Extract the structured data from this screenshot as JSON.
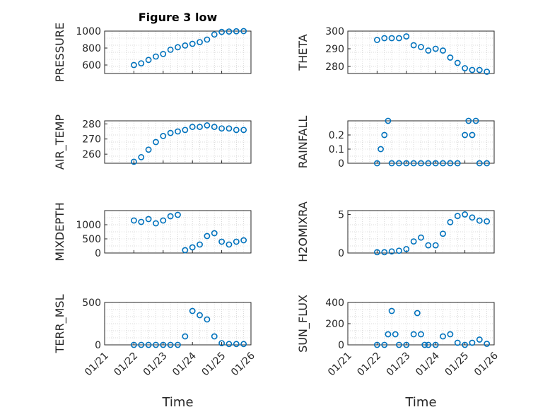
{
  "figure": {
    "title": "Figure 3 low",
    "marker_color": "#0072BD"
  },
  "x_axis": {
    "label": "Time",
    "tick_labels": [
      "01/21",
      "01/22",
      "01/23",
      "01/24",
      "01/25",
      "01/26"
    ],
    "range": [
      "01/21",
      "01/26"
    ]
  },
  "chart_data": [
    {
      "type": "scatter",
      "ylabel": "PRESSURE",
      "yticks": [
        "600",
        "800",
        "1000"
      ],
      "ylim": [
        500,
        1000
      ],
      "title": "Figure 3 low",
      "x": [
        "01/22 00:00",
        "01/22 06:00",
        "01/22 12:00",
        "01/22 18:00",
        "01/23 00:00",
        "01/23 06:00",
        "01/23 12:00",
        "01/23 18:00",
        "01/24 00:00",
        "01/24 06:00",
        "01/24 12:00",
        "01/24 18:00",
        "01/25 00:00",
        "01/25 06:00",
        "01/25 12:00",
        "01/25 18:00"
      ],
      "y": [
        600,
        620,
        660,
        700,
        730,
        780,
        810,
        830,
        850,
        870,
        900,
        960,
        990,
        995,
        998,
        1000
      ]
    },
    {
      "type": "scatter",
      "ylabel": "THETA",
      "yticks": [
        "280",
        "290",
        "300"
      ],
      "ylim": [
        276,
        300
      ],
      "x": [
        "01/22 00:00",
        "01/22 06:00",
        "01/22 12:00",
        "01/22 18:00",
        "01/23 00:00",
        "01/23 06:00",
        "01/23 12:00",
        "01/23 18:00",
        "01/24 00:00",
        "01/24 06:00",
        "01/24 12:00",
        "01/24 18:00",
        "01/25 00:00",
        "01/25 06:00",
        "01/25 12:00",
        "01/25 18:00"
      ],
      "y": [
        295,
        296,
        296,
        296,
        297,
        292,
        291,
        289,
        290,
        289,
        285,
        282,
        279,
        278,
        278,
        277
      ]
    },
    {
      "type": "scatter",
      "ylabel": "AIR_TEMP",
      "yticks": [
        "260",
        "270",
        "280"
      ],
      "ylim": [
        254,
        282
      ],
      "x": [
        "01/22 00:00",
        "01/22 06:00",
        "01/22 12:00",
        "01/22 18:00",
        "01/23 00:00",
        "01/23 06:00",
        "01/23 12:00",
        "01/23 18:00",
        "01/24 00:00",
        "01/24 06:00",
        "01/24 12:00",
        "01/24 18:00",
        "01/25 00:00",
        "01/25 06:00",
        "01/25 12:00",
        "01/25 18:00"
      ],
      "y": [
        255,
        258,
        263,
        268,
        272,
        274,
        275,
        276,
        278,
        278,
        279,
        278,
        277,
        277,
        276,
        276
      ]
    },
    {
      "type": "scatter",
      "ylabel": "RAINFALL",
      "yticks": [
        "0",
        "0.1",
        "0.2"
      ],
      "ylim": [
        0,
        0.3
      ],
      "x": [
        "01/22 00:00",
        "01/22 03:00",
        "01/22 06:00",
        "01/22 09:00",
        "01/22 12:00",
        "01/22 18:00",
        "01/23 00:00",
        "01/23 06:00",
        "01/23 12:00",
        "01/23 18:00",
        "01/24 00:00",
        "01/24 06:00",
        "01/24 12:00",
        "01/24 18:00",
        "01/25 00:00",
        "01/25 03:00",
        "01/25 06:00",
        "01/25 09:00",
        "01/25 12:00",
        "01/25 18:00"
      ],
      "y": [
        0,
        0.1,
        0.2,
        0.3,
        0,
        0,
        0,
        0,
        0,
        0,
        0,
        0,
        0,
        0,
        0.2,
        0.3,
        0.2,
        0.3,
        0,
        0
      ]
    },
    {
      "type": "scatter",
      "ylabel": "MIXDEPTH",
      "yticks": [
        "0",
        "500",
        "1000"
      ],
      "ylim": [
        0,
        1500
      ],
      "x": [
        "01/22 00:00",
        "01/22 06:00",
        "01/22 12:00",
        "01/22 18:00",
        "01/23 00:00",
        "01/23 06:00",
        "01/23 12:00",
        "01/23 18:00",
        "01/24 00:00",
        "01/24 06:00",
        "01/24 12:00",
        "01/24 18:00",
        "01/25 00:00",
        "01/25 06:00",
        "01/25 12:00",
        "01/25 18:00"
      ],
      "y": [
        1150,
        1100,
        1200,
        1050,
        1150,
        1300,
        1350,
        100,
        200,
        300,
        600,
        700,
        400,
        300,
        400,
        450
      ]
    },
    {
      "type": "scatter",
      "ylabel": "H2OMIXRA",
      "yticks": [
        "0",
        "5"
      ],
      "ylim": [
        0,
        5.5
      ],
      "x": [
        "01/22 00:00",
        "01/22 06:00",
        "01/22 12:00",
        "01/22 18:00",
        "01/23 00:00",
        "01/23 06:00",
        "01/23 12:00",
        "01/23 18:00",
        "01/24 00:00",
        "01/24 06:00",
        "01/24 12:00",
        "01/24 18:00",
        "01/25 00:00",
        "01/25 06:00",
        "01/25 12:00",
        "01/25 18:00"
      ],
      "y": [
        0.1,
        0.1,
        0.2,
        0.3,
        0.5,
        1.5,
        2.0,
        1.0,
        1.0,
        2.5,
        4.0,
        4.8,
        5.0,
        4.6,
        4.2,
        4.1
      ]
    },
    {
      "type": "scatter",
      "ylabel": "TERR_MSL",
      "yticks": [
        "0",
        "500"
      ],
      "ylim": [
        0,
        500
      ],
      "x": [
        "01/22 00:00",
        "01/22 06:00",
        "01/22 12:00",
        "01/22 18:00",
        "01/23 00:00",
        "01/23 06:00",
        "01/23 12:00",
        "01/23 18:00",
        "01/24 00:00",
        "01/24 06:00",
        "01/24 12:00",
        "01/24 18:00",
        "01/25 00:00",
        "01/25 06:00",
        "01/25 12:00",
        "01/25 18:00"
      ],
      "y": [
        0,
        0,
        0,
        0,
        0,
        0,
        0,
        100,
        400,
        350,
        300,
        100,
        20,
        10,
        10,
        10
      ]
    },
    {
      "type": "scatter",
      "ylabel": "SUN_FLUX",
      "yticks": [
        "0",
        "200",
        "400"
      ],
      "ylim": [
        0,
        400
      ],
      "x": [
        "01/22 00:00",
        "01/22 06:00",
        "01/22 09:00",
        "01/22 12:00",
        "01/22 15:00",
        "01/22 18:00",
        "01/23 00:00",
        "01/23 06:00",
        "01/23 09:00",
        "01/23 12:00",
        "01/23 15:00",
        "01/23 18:00",
        "01/24 00:00",
        "01/24 06:00",
        "01/24 12:00",
        "01/24 18:00",
        "01/25 00:00",
        "01/25 06:00",
        "01/25 12:00",
        "01/25 18:00"
      ],
      "y": [
        0,
        0,
        100,
        320,
        100,
        0,
        0,
        100,
        300,
        100,
        0,
        0,
        0,
        80,
        100,
        20,
        0,
        20,
        50,
        10
      ]
    }
  ]
}
